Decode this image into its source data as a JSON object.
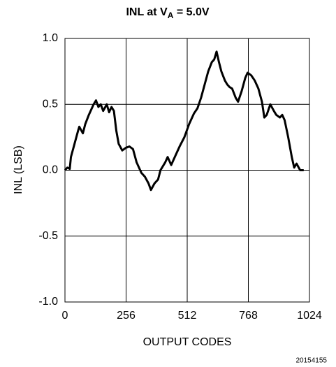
{
  "chart_data": {
    "type": "line",
    "title": [
      "INL at V",
      "A",
      " = 5.0V"
    ],
    "xlabel": "OUTPUT CODES",
    "ylabel": "INL (LSB)",
    "annotation": "20154155",
    "xlim": [
      0,
      1024
    ],
    "xticks": [
      0,
      256,
      512,
      768,
      1024
    ],
    "ylim": [
      -1,
      1
    ],
    "yticks": [
      {
        "value": -1,
        "label": "-1.0"
      },
      -0.5,
      {
        "value": 0,
        "label": "0.0"
      },
      0.5,
      {
        "value": 1,
        "label": "1.0"
      }
    ],
    "grid": true,
    "series": [
      {
        "color": "#000000",
        "x": [
          0,
          10,
          20,
          25,
          40,
          55,
          60,
          75,
          85,
          100,
          120,
          130,
          140,
          150,
          160,
          175,
          185,
          195,
          205,
          215,
          225,
          240,
          255,
          270,
          285,
          300,
          320,
          335,
          350,
          360,
          375,
          390,
          400,
          420,
          430,
          445,
          460,
          480,
          500,
          520,
          540,
          555,
          570,
          585,
          600,
          615,
          625,
          635,
          645,
          655,
          670,
          680,
          690,
          700,
          715,
          725,
          740,
          755,
          765,
          780,
          795,
          810,
          825,
          835,
          845,
          860,
          875,
          885,
          900,
          910,
          920,
          935,
          950,
          960,
          970,
          985,
          1000
        ],
        "values": [
          0,
          0.02,
          0.01,
          0.1,
          0.2,
          0.3,
          0.33,
          0.28,
          0.35,
          0.42,
          0.5,
          0.53,
          0.48,
          0.5,
          0.45,
          0.5,
          0.44,
          0.48,
          0.45,
          0.3,
          0.2,
          0.15,
          0.17,
          0.18,
          0.16,
          0.06,
          -0.02,
          -0.05,
          -0.1,
          -0.15,
          -0.1,
          -0.07,
          0,
          0.06,
          0.1,
          0.04,
          0.1,
          0.18,
          0.25,
          0.35,
          0.43,
          0.47,
          0.55,
          0.65,
          0.75,
          0.82,
          0.84,
          0.9,
          0.82,
          0.75,
          0.68,
          0.65,
          0.63,
          0.62,
          0.55,
          0.52,
          0.6,
          0.7,
          0.74,
          0.72,
          0.68,
          0.62,
          0.52,
          0.4,
          0.42,
          0.5,
          0.45,
          0.42,
          0.4,
          0.42,
          0.38,
          0.25,
          0.1,
          0.02,
          0.05,
          0,
          0
        ]
      }
    ]
  }
}
